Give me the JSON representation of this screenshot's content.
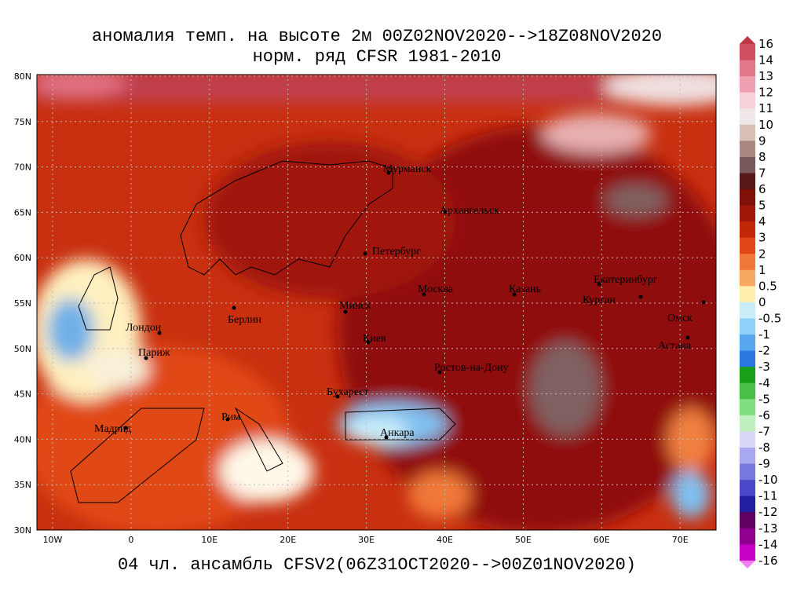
{
  "title": [
    "аномалия темп. на высоте 2м 00Z02NOV2020-->18Z08NOV2020",
    "норм. ряд CFSR 1981-2010"
  ],
  "footer": "04 чл. ансамбль CFSV2(06Z31OCT2020-->00Z01NOV2020)",
  "lat_labels": [
    "80N",
    "75N",
    "70N",
    "65N",
    "60N",
    "55N",
    "50N",
    "45N",
    "40N",
    "35N",
    "30N"
  ],
  "lon_labels": [
    "10W",
    "0",
    "10E",
    "20E",
    "30E",
    "40E",
    "50E",
    "60E",
    "70E"
  ],
  "cities": [
    "Мурманск",
    "Архангельск",
    "Петербург",
    "Москва",
    "Казань",
    "Екатеринбург",
    "Курган",
    "Омск",
    "Астана",
    "Минск",
    "Берлин",
    "Лондон",
    "Париж",
    "Киев",
    "Ростов-на-Дону",
    "Бухарест",
    "Рим",
    "Мадрид",
    "Анкара"
  ],
  "colorbar": {
    "labels": [
      "16",
      "14",
      "13",
      "12",
      "11",
      "10",
      "9",
      "8",
      "7",
      "6",
      "5",
      "4",
      "3",
      "2",
      "1",
      "0.5",
      "0",
      "-0.5",
      "-1",
      "-2",
      "-3",
      "-4",
      "-5",
      "-6",
      "-7",
      "-8",
      "-9",
      "-10",
      "-11",
      "-12",
      "-13",
      "-14",
      "-16"
    ],
    "colors": [
      "#c03848",
      "#d05060",
      "#e07888",
      "#f0a0b0",
      "#f8d0d8",
      "#f0e8e8",
      "#d8c0b8",
      "#a88880",
      "#785858",
      "#581818",
      "#801008",
      "#a01808",
      "#c02808",
      "#e04818",
      "#f07838",
      "#f8a860",
      "#fff0b0",
      "#c8ecf8",
      "#90d0f8",
      "#58a8f0",
      "#2878e0",
      "#18a018",
      "#48c048",
      "#80e080",
      "#c0f0c0",
      "#d8d8f8",
      "#a8a8f0",
      "#7878e0",
      "#4848c8",
      "#2020a0",
      "#600060",
      "#900090",
      "#c800c8",
      "#f080f0"
    ]
  }
}
